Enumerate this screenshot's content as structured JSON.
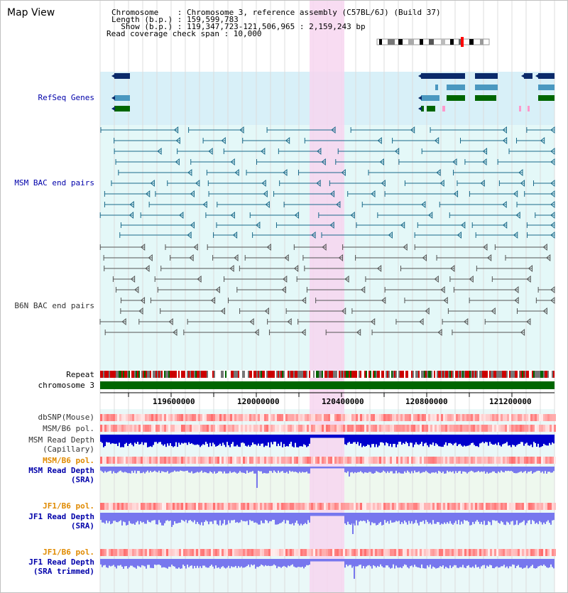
{
  "title": "Map View",
  "header": {
    "line1": "Chromosome    : Chromosome 3, reference assembly (C57BL/6J) (Build 37)",
    "line2": "Length (b.p.) : 159,599,783",
    "line3": "  Show (b.p.) : 119,347,723-121,506,965 : 2,159,243 bp",
    "line4": "Read coverage check span : 10,000"
  },
  "tracks": {
    "refseq": "RefSeq Genes",
    "msm_bac": "MSM BAC end pairs",
    "b6n_bac": "B6N BAC end pairs",
    "repeat": "Repeat",
    "chromosome": "chromosome 3",
    "dbsnp": "dbSNP(Mouse)",
    "msm_b6_pol_1": "MSM/B6 pol.",
    "msm_depth_cap_1": "MSM Read Depth",
    "msm_depth_cap_2": "(Capillary)",
    "msm_b6_pol_2": "MSM/B6 pol.",
    "msm_depth_sra_1": "MSM Read Depth",
    "msm_depth_sra_2": "(SRA)",
    "jf1_b6_pol_1": "JF1/B6 pol.",
    "jf1_depth_sra_1": "JF1 Read Depth",
    "jf1_depth_sra_2": "(SRA)",
    "jf1_b6_pol_2": "JF1/B6 pol.",
    "jf1_depth_trim_1": "JF1 Read Depth",
    "jf1_depth_trim_2": "(SRA trimmed)"
  },
  "ruler": {
    "ticks": [
      "119600000",
      "120000000",
      "120400000",
      "120800000",
      "121200000"
    ]
  },
  "colors": {
    "highlight": "#f7d6f0",
    "refseq_bg": "#d8f0f8",
    "bac_bg": "#e4f8f8",
    "gene_dark": "#0a2a6a",
    "gene_mid": "#4a98c0",
    "gene_green": "#006600",
    "msm_line": "#1a6a8a",
    "b6n_line": "#555555",
    "chromosome": "#006600",
    "depth_dark": "#0000cc",
    "depth_light": "#7777ee"
  }
}
